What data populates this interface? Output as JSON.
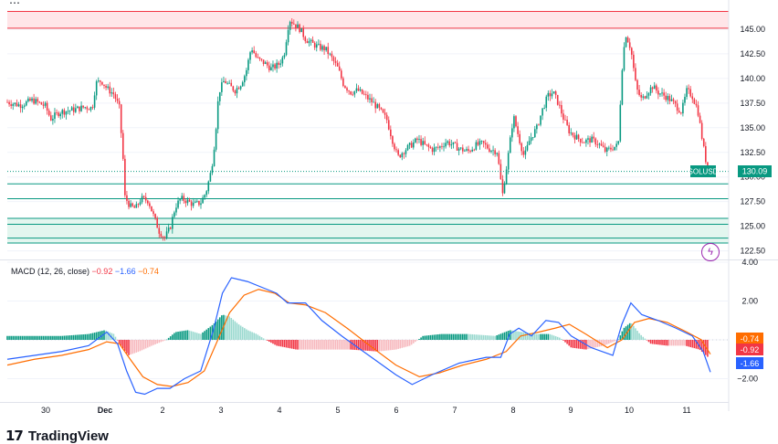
{
  "brand": {
    "logo": "17",
    "name": "TradingView"
  },
  "symbol": "SOLUSD",
  "last_price": "130.09",
  "colors": {
    "up": "#089981",
    "down": "#f23645",
    "macd": "#2962ff",
    "signal": "#ff6d00",
    "histUpLight": "#9ad9cf",
    "histDownLight": "#f7b9be",
    "zoneRed": "#ffe5e8",
    "zoneGreen": "#e3f6ef"
  },
  "macd_label": {
    "name": "MACD (12, 26, close)",
    "v1": "−0.92",
    "v2": "−1.66",
    "v3": "−0.74"
  },
  "chart_data": {
    "type": "candlestick",
    "price_ticks": [
      "145.00",
      "142.50",
      "140.00",
      "137.50",
      "135.00",
      "132.50",
      "130.00",
      "127.50",
      "125.00",
      "122.50"
    ],
    "price_range": [
      122.0,
      147.5
    ],
    "x_labels": [
      "30",
      "Dec",
      "2",
      "3",
      "4",
      "5",
      "6",
      "7",
      "8",
      "9",
      "10",
      "11"
    ],
    "macd_ticks": [
      "4.00",
      "2.00",
      "0.00",
      "−2.00"
    ],
    "macd_range": [
      -3.2,
      4.0
    ],
    "macd_badges": [
      {
        "text": "-0.74",
        "color": "#ff6d00",
        "value": -0.74
      },
      {
        "text": "-0.92",
        "color": "#f23645",
        "value": -0.92
      },
      {
        "text": "-1.66",
        "color": "#2962ff",
        "value": -1.66
      }
    ],
    "levels": [
      {
        "price": 146.8,
        "color": "#f23645"
      },
      {
        "price": 145.1,
        "color": "#f23645"
      },
      {
        "price": 129.3,
        "color": "#089981"
      },
      {
        "price": 127.8,
        "color": "#089981"
      },
      {
        "price": 125.8,
        "color": "#089981"
      },
      {
        "price": 125.2,
        "color": "#089981"
      },
      {
        "price": 123.8,
        "color": "#089981"
      },
      {
        "price": 123.3,
        "color": "#089981"
      }
    ],
    "zones": [
      {
        "from": 145.1,
        "to": 146.8,
        "color": "#ffe5e8"
      },
      {
        "from": 123.3,
        "to": 125.8,
        "color": "#e3f6ef"
      }
    ],
    "price_path": [
      [
        0,
        137.6
      ],
      [
        14,
        137.3
      ],
      [
        28,
        137.8
      ],
      [
        42,
        137.2
      ],
      [
        48,
        135.9
      ],
      [
        58,
        136.6
      ],
      [
        72,
        136.8
      ],
      [
        86,
        137.1
      ],
      [
        94,
        137.0
      ],
      [
        98,
        139.5
      ],
      [
        104,
        139.8
      ],
      [
        110,
        139.0
      ],
      [
        118,
        138.4
      ],
      [
        124,
        137.0
      ],
      [
        128,
        132.0
      ],
      [
        130,
        128.0
      ],
      [
        136,
        127.0
      ],
      [
        142,
        126.8
      ],
      [
        148,
        127.8
      ],
      [
        156,
        127.6
      ],
      [
        162,
        126.0
      ],
      [
        168,
        124.5
      ],
      [
        174,
        123.8
      ],
      [
        180,
        124.8
      ],
      [
        186,
        127.0
      ],
      [
        192,
        127.8
      ],
      [
        198,
        127.6
      ],
      [
        206,
        127.2
      ],
      [
        214,
        127.4
      ],
      [
        220,
        128.5
      ],
      [
        226,
        130.8
      ],
      [
        230,
        134.0
      ],
      [
        234,
        138.6
      ],
      [
        240,
        139.8
      ],
      [
        246,
        139.2
      ],
      [
        252,
        138.8
      ],
      [
        258,
        139.4
      ],
      [
        264,
        140.6
      ],
      [
        270,
        143.2
      ],
      [
        276,
        142.0
      ],
      [
        284,
        141.6
      ],
      [
        292,
        141.0
      ],
      [
        300,
        141.4
      ],
      [
        306,
        142.3
      ],
      [
        312,
        146.0
      ],
      [
        318,
        145.5
      ],
      [
        324,
        145.0
      ],
      [
        330,
        144.0
      ],
      [
        336,
        143.6
      ],
      [
        344,
        143.2
      ],
      [
        352,
        143.0
      ],
      [
        358,
        142.2
      ],
      [
        366,
        141.0
      ],
      [
        372,
        139.4
      ],
      [
        380,
        138.6
      ],
      [
        388,
        138.8
      ],
      [
        396,
        138.2
      ],
      [
        404,
        137.6
      ],
      [
        412,
        136.8
      ],
      [
        420,
        135.8
      ],
      [
        426,
        133.8
      ],
      [
        432,
        132.0
      ],
      [
        438,
        132.6
      ],
      [
        446,
        133.2
      ],
      [
        454,
        133.8
      ],
      [
        462,
        133.2
      ],
      [
        470,
        132.8
      ],
      [
        478,
        133.0
      ],
      [
        486,
        133.6
      ],
      [
        494,
        133.2
      ],
      [
        502,
        132.8
      ],
      [
        510,
        132.6
      ],
      [
        518,
        133.2
      ],
      [
        526,
        133.4
      ],
      [
        534,
        132.8
      ],
      [
        542,
        132.6
      ],
      [
        548,
        128.2
      ],
      [
        554,
        132.0
      ],
      [
        560,
        136.2
      ],
      [
        566,
        134.0
      ],
      [
        572,
        132.0
      ],
      [
        578,
        133.8
      ],
      [
        586,
        135.0
      ],
      [
        592,
        136.8
      ],
      [
        598,
        138.2
      ],
      [
        604,
        138.6
      ],
      [
        610,
        137.4
      ],
      [
        616,
        135.8
      ],
      [
        622,
        134.6
      ],
      [
        630,
        134.0
      ],
      [
        638,
        133.6
      ],
      [
        646,
        133.8
      ],
      [
        654,
        133.4
      ],
      [
        662,
        132.6
      ],
      [
        670,
        133.0
      ],
      [
        676,
        133.2
      ],
      [
        680,
        140.8
      ],
      [
        684,
        144.6
      ],
      [
        690,
        143.0
      ],
      [
        696,
        139.0
      ],
      [
        702,
        137.8
      ],
      [
        708,
        138.6
      ],
      [
        714,
        139.2
      ],
      [
        720,
        138.6
      ],
      [
        728,
        138.2
      ],
      [
        734,
        137.8
      ],
      [
        740,
        137.2
      ],
      [
        746,
        136.6
      ],
      [
        752,
        138.8
      ],
      [
        758,
        138.2
      ],
      [
        764,
        136.8
      ],
      [
        770,
        133.2
      ],
      [
        776,
        130.1
      ]
    ],
    "macd_path": [
      [
        0,
        -1.0
      ],
      [
        30,
        -0.8
      ],
      [
        60,
        -0.6
      ],
      [
        90,
        -0.3
      ],
      [
        110,
        0.4
      ],
      [
        122,
        -0.2
      ],
      [
        132,
        -1.6
      ],
      [
        142,
        -2.7
      ],
      [
        152,
        -2.8
      ],
      [
        166,
        -2.5
      ],
      [
        180,
        -2.5
      ],
      [
        196,
        -2.0
      ],
      [
        214,
        -1.6
      ],
      [
        228,
        0.5
      ],
      [
        238,
        2.4
      ],
      [
        248,
        3.2
      ],
      [
        266,
        3.0
      ],
      [
        282,
        2.7
      ],
      [
        298,
        2.4
      ],
      [
        310,
        1.9
      ],
      [
        330,
        1.9
      ],
      [
        348,
        1.0
      ],
      [
        370,
        0.2
      ],
      [
        400,
        -0.8
      ],
      [
        430,
        -1.8
      ],
      [
        448,
        -2.3
      ],
      [
        470,
        -1.8
      ],
      [
        500,
        -1.2
      ],
      [
        530,
        -0.9
      ],
      [
        546,
        -0.9
      ],
      [
        556,
        0.3
      ],
      [
        566,
        0.6
      ],
      [
        580,
        0.2
      ],
      [
        596,
        1.0
      ],
      [
        610,
        0.9
      ],
      [
        624,
        0.2
      ],
      [
        646,
        -0.4
      ],
      [
        670,
        -0.8
      ],
      [
        680,
        0.8
      ],
      [
        690,
        1.9
      ],
      [
        702,
        1.3
      ],
      [
        720,
        1.0
      ],
      [
        740,
        0.6
      ],
      [
        758,
        0.2
      ],
      [
        770,
        -0.6
      ],
      [
        778,
        -1.66
      ]
    ],
    "signal_path": [
      [
        0,
        -1.3
      ],
      [
        30,
        -1.0
      ],
      [
        60,
        -0.8
      ],
      [
        90,
        -0.5
      ],
      [
        110,
        -0.1
      ],
      [
        124,
        -0.2
      ],
      [
        136,
        -1.0
      ],
      [
        150,
        -1.9
      ],
      [
        166,
        -2.3
      ],
      [
        182,
        -2.4
      ],
      [
        200,
        -2.2
      ],
      [
        218,
        -1.6
      ],
      [
        232,
        -0.1
      ],
      [
        246,
        1.4
      ],
      [
        262,
        2.3
      ],
      [
        278,
        2.6
      ],
      [
        296,
        2.4
      ],
      [
        312,
        1.9
      ],
      [
        330,
        1.8
      ],
      [
        352,
        1.4
      ],
      [
        376,
        0.6
      ],
      [
        404,
        -0.4
      ],
      [
        430,
        -1.3
      ],
      [
        456,
        -1.9
      ],
      [
        478,
        -1.7
      ],
      [
        504,
        -1.3
      ],
      [
        530,
        -1.0
      ],
      [
        552,
        -0.6
      ],
      [
        568,
        0.2
      ],
      [
        588,
        0.4
      ],
      [
        606,
        0.6
      ],
      [
        622,
        0.8
      ],
      [
        640,
        0.3
      ],
      [
        664,
        -0.4
      ],
      [
        680,
        0.0
      ],
      [
        694,
        0.9
      ],
      [
        710,
        1.1
      ],
      [
        730,
        0.9
      ],
      [
        752,
        0.4
      ],
      [
        768,
        0.0
      ],
      [
        778,
        -0.74
      ]
    ],
    "hist_path": [
      [
        0,
        0.2
      ],
      [
        30,
        0.2
      ],
      [
        60,
        0.2
      ],
      [
        90,
        0.3
      ],
      [
        108,
        0.5
      ],
      [
        118,
        0.3
      ],
      [
        124,
        -0.2
      ],
      [
        134,
        -0.8
      ],
      [
        146,
        -0.6
      ],
      [
        160,
        -0.3
      ],
      [
        176,
        0.0
      ],
      [
        186,
        0.4
      ],
      [
        200,
        0.5
      ],
      [
        214,
        0.3
      ],
      [
        228,
        0.8
      ],
      [
        238,
        1.3
      ],
      [
        246,
        1.2
      ],
      [
        256,
        0.8
      ],
      [
        266,
        0.5
      ],
      [
        276,
        0.3
      ],
      [
        286,
        0.0
      ],
      [
        298,
        -0.3
      ],
      [
        320,
        -0.5
      ],
      [
        350,
        -0.5
      ],
      [
        380,
        -0.5
      ],
      [
        410,
        -0.6
      ],
      [
        430,
        -0.5
      ],
      [
        446,
        -0.3
      ],
      [
        460,
        0.2
      ],
      [
        480,
        0.3
      ],
      [
        510,
        0.3
      ],
      [
        540,
        0.2
      ],
      [
        556,
        0.5
      ],
      [
        570,
        0.4
      ],
      [
        586,
        0.3
      ],
      [
        600,
        0.3
      ],
      [
        612,
        0.1
      ],
      [
        624,
        -0.4
      ],
      [
        640,
        -0.5
      ],
      [
        660,
        -0.3
      ],
      [
        676,
        0.0
      ],
      [
        682,
        0.6
      ],
      [
        690,
        0.9
      ],
      [
        700,
        0.3
      ],
      [
        712,
        -0.2
      ],
      [
        730,
        -0.3
      ],
      [
        750,
        -0.3
      ],
      [
        766,
        -0.5
      ],
      [
        776,
        -0.92
      ]
    ]
  }
}
